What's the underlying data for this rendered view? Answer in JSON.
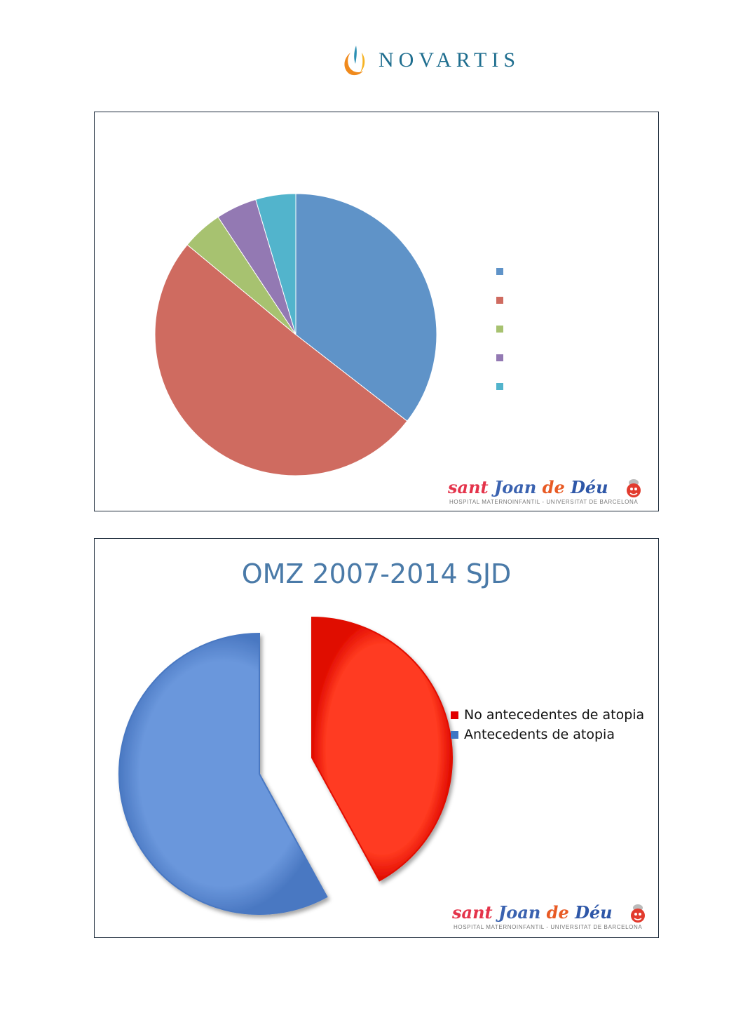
{
  "header": {
    "brand_name": "NOVARTIS"
  },
  "slides": [
    {
      "chart_data": {
        "type": "pie",
        "title": "",
        "legend_position": "right",
        "values": [
          35.5,
          50.5,
          4.7,
          4.7,
          4.6
        ],
        "colors": [
          "#5f93c8",
          "#cf6b60",
          "#a7c270",
          "#9379b3",
          "#52b4cc"
        ]
      },
      "hospital_logo": {
        "name_parts": [
          "sant ",
          "Joan",
          " de ",
          "Déu"
        ],
        "subtitle": "HOSPITAL MATERNOINFANTIL - UNIVERSITAT DE BARCELONA"
      }
    },
    {
      "title": "OMZ 2007-2014 SJD",
      "chart_data": {
        "type": "pie",
        "title": "OMZ 2007-2014 SJD",
        "legend_position": "right",
        "exploded": true,
        "categories": [
          "No antecedentes de atopia",
          "Antecedents de atopia"
        ],
        "values": [
          42,
          58
        ],
        "colors": [
          "#ff1500",
          "#5a88d0"
        ]
      },
      "legend": [
        {
          "label": "No antecedentes de atopia",
          "color": "#e00000"
        },
        {
          "label": "Antecedents de atopia",
          "color": "#3f76c4"
        }
      ],
      "hospital_logo": {
        "name_parts": [
          "sant ",
          "Joan",
          " de ",
          "Déu"
        ],
        "subtitle": "HOSPITAL MATERNOINFANTIL - UNIVERSITAT DE BARCELONA"
      }
    }
  ]
}
